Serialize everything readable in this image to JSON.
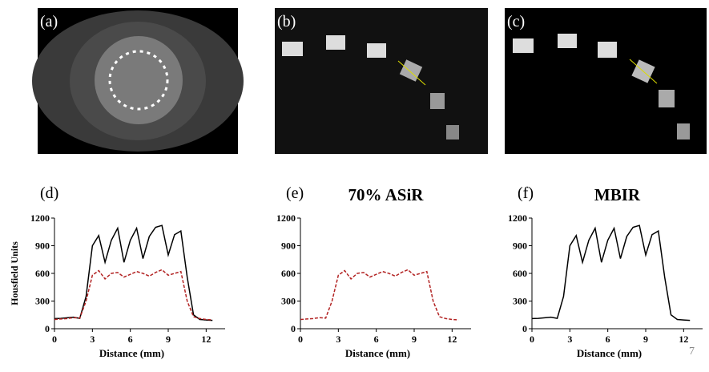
{
  "images": [
    {
      "label": "(a)"
    },
    {
      "label": "(b)"
    },
    {
      "label": "(c)"
    }
  ],
  "page_number": "7",
  "chart_data": [
    {
      "type": "line",
      "panel": "(d)",
      "xlabel": "Distance (mm)",
      "ylabel": "Housfield  Units",
      "x": [
        0,
        0.5,
        1,
        1.5,
        2,
        2.5,
        3,
        3.5,
        4,
        4.5,
        5,
        5.5,
        6,
        6.5,
        7,
        7.5,
        8,
        8.5,
        9,
        9.5,
        10,
        10.5,
        11,
        11.5,
        12,
        12.5
      ],
      "series": [
        {
          "color": "#000000",
          "dashed": false,
          "values": [
            110,
            112,
            118,
            125,
            112,
            350,
            900,
            1010,
            720,
            960,
            1090,
            720,
            960,
            1090,
            760,
            1000,
            1100,
            1120,
            800,
            1020,
            1060,
            560,
            150,
            100,
            95,
            90
          ]
        },
        {
          "color": "#b22222",
          "dashed": true,
          "values": [
            100,
            105,
            110,
            120,
            115,
            300,
            580,
            630,
            540,
            600,
            610,
            560,
            590,
            620,
            600,
            570,
            610,
            640,
            580,
            600,
            620,
            300,
            130,
            110,
            100,
            95
          ]
        }
      ],
      "xlim": [
        0,
        13.5
      ],
      "xticks": [
        0,
        3,
        6,
        9,
        12
      ],
      "ylim": [
        0,
        1200
      ],
      "yticks": [
        0,
        300,
        600,
        900,
        1200
      ]
    },
    {
      "type": "line",
      "panel": "(e)",
      "title": "70% ASiR",
      "xlabel": "Distance (mm)",
      "x": [
        0,
        0.5,
        1,
        1.5,
        2,
        2.5,
        3,
        3.5,
        4,
        4.5,
        5,
        5.5,
        6,
        6.5,
        7,
        7.5,
        8,
        8.5,
        9,
        9.5,
        10,
        10.5,
        11,
        11.5,
        12,
        12.5
      ],
      "series": [
        {
          "color": "#b22222",
          "dashed": true,
          "values": [
            100,
            105,
            110,
            120,
            115,
            300,
            580,
            630,
            540,
            600,
            610,
            560,
            590,
            620,
            600,
            570,
            610,
            640,
            580,
            600,
            620,
            300,
            130,
            110,
            100,
            95
          ]
        }
      ],
      "xlim": [
        0,
        13.5
      ],
      "xticks": [
        0,
        3,
        6,
        9,
        12
      ],
      "ylim": [
        0,
        1200
      ],
      "yticks": [
        0,
        300,
        600,
        900,
        1200
      ]
    },
    {
      "type": "line",
      "panel": "(f)",
      "title": "MBIR",
      "xlabel": "Distance (mm)",
      "x": [
        0,
        0.5,
        1,
        1.5,
        2,
        2.5,
        3,
        3.5,
        4,
        4.5,
        5,
        5.5,
        6,
        6.5,
        7,
        7.5,
        8,
        8.5,
        9,
        9.5,
        10,
        10.5,
        11,
        11.5,
        12,
        12.5
      ],
      "series": [
        {
          "color": "#000000",
          "dashed": false,
          "values": [
            110,
            112,
            118,
            125,
            112,
            350,
            900,
            1010,
            720,
            960,
            1090,
            720,
            960,
            1090,
            760,
            1000,
            1100,
            1120,
            800,
            1020,
            1060,
            560,
            150,
            100,
            95,
            90
          ]
        }
      ],
      "xlim": [
        0,
        13.5
      ],
      "xticks": [
        0,
        3,
        6,
        9,
        12
      ],
      "ylim": [
        0,
        1200
      ],
      "yticks": [
        0,
        300,
        600,
        900,
        1200
      ]
    }
  ]
}
